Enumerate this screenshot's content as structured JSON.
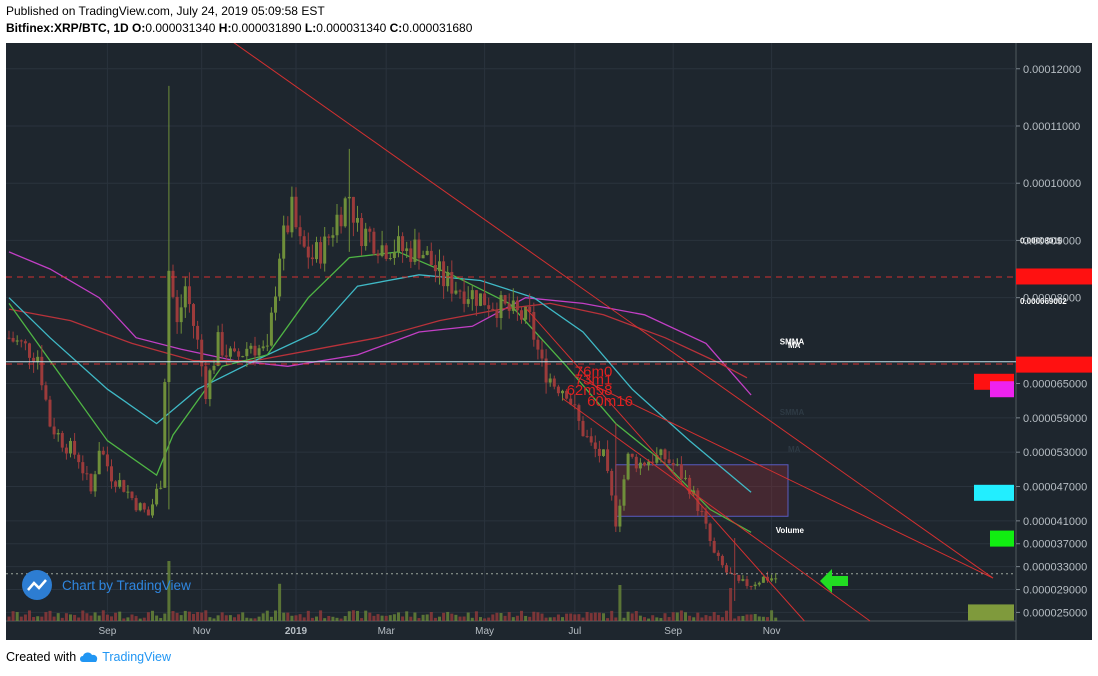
{
  "header": {
    "published": "Published on TradingView.com, July 24, 2019 05:09:58 EST",
    "symbol": "Bitfinex:XRP/BTC, 1D",
    "open_label": "O:",
    "open": "0.000031340",
    "high_label": "H:",
    "high": "0.000031890",
    "low_label": "L:",
    "low": "0.000031340",
    "close_label": "C:",
    "close": "0.000031680"
  },
  "watermark": "Chart by TradingView",
  "footer": {
    "created_with": "Created with",
    "brand": "TradingView"
  },
  "colors": {
    "background": "#1e262e",
    "grid": "#2a333d",
    "up": "#6f8f3a",
    "down": "#9c3b3b",
    "ma_magenta": "#c23fc5",
    "ma_cyan": "#3fb9c6",
    "ma_green": "#4fb544",
    "ma_red": "#b8323a",
    "trend_red": "#d23030",
    "arrow": "#22dd22"
  },
  "chart_data": {
    "type": "candlestick",
    "ylim": [
      2.35e-05,
      0.0001245
    ],
    "y_ticks": [
      "0.00012000",
      "0.00011000",
      "0.00010000",
      "0.00009000",
      "0.00008000",
      "0.000065000",
      "0.000059000",
      "0.000053000",
      "0.000047000",
      "0.000041000",
      "0.000037000",
      "0.000033000",
      "0.000029000",
      "0.000025000"
    ],
    "y_tick_values": [
      0.00012,
      0.00011,
      0.0001,
      9e-05,
      8e-05,
      6.5e-05,
      5.9e-05,
      5.3e-05,
      4.7e-05,
      4.1e-05,
      3.7e-05,
      3.3e-05,
      2.9e-05,
      2.5e-05
    ],
    "x_ticks": [
      "Sep",
      "Nov",
      "2019",
      "Mar",
      "May",
      "Jul",
      "Sep",
      "Nov"
    ],
    "x_tick_index": [
      24,
      47,
      70,
      92,
      116,
      138,
      162,
      186
    ],
    "price_path": [
      [
        0,
        7.3e-05
      ],
      [
        7,
        7e-05
      ],
      [
        10,
        5.8e-05
      ],
      [
        13,
        5.5e-05
      ],
      [
        17,
        5.2e-05
      ],
      [
        20,
        4.6e-05
      ],
      [
        22,
        5.4e-05
      ],
      [
        25,
        4.9e-05
      ],
      [
        28,
        4.7e-05
      ],
      [
        31,
        4.4e-05
      ],
      [
        34,
        4.2e-05
      ],
      [
        37,
        4.8e-05
      ],
      [
        39,
        8.5e-05
      ],
      [
        41,
        7.5e-05
      ],
      [
        43,
        8.2e-05
      ],
      [
        46,
        7.2e-05
      ],
      [
        48,
        6.4e-05
      ],
      [
        51,
        7.2e-05
      ],
      [
        55,
        6.9e-05
      ],
      [
        59,
        7.2e-05
      ],
      [
        63,
        7e-05
      ],
      [
        66,
        8.8e-05
      ],
      [
        69,
        9.5e-05
      ],
      [
        71,
        8.9e-05
      ],
      [
        74,
        8.7e-05
      ],
      [
        77,
        8.9e-05
      ],
      [
        80,
        9.4e-05
      ],
      [
        83,
        9.8e-05
      ],
      [
        85,
        9.2e-05
      ],
      [
        88,
        9.1e-05
      ],
      [
        91,
        8.9e-05
      ],
      [
        94,
        8.9e-05
      ],
      [
        97,
        8.8e-05
      ],
      [
        100,
        8.9e-05
      ],
      [
        103,
        8.6e-05
      ],
      [
        106,
        8.3e-05
      ],
      [
        109,
        8.2e-05
      ],
      [
        112,
        8.1e-05
      ],
      [
        115,
        8e-05
      ],
      [
        118,
        7.9e-05
      ],
      [
        121,
        7.8e-05
      ],
      [
        124,
        7.7e-05
      ],
      [
        127,
        7.6e-05
      ],
      [
        130,
        6.8e-05
      ],
      [
        133,
        6.5e-05
      ],
      [
        136,
        6.4e-05
      ],
      [
        139,
        5.8e-05
      ],
      [
        142,
        5.4e-05
      ],
      [
        145,
        5.2e-05
      ],
      [
        148,
        4.1e-05
      ],
      [
        151,
        5.2e-05
      ],
      [
        154,
        5.1e-05
      ],
      [
        157,
        5.2e-05
      ],
      [
        160,
        5.2e-05
      ],
      [
        163,
        5e-05
      ],
      [
        166,
        4.7e-05
      ],
      [
        169,
        4.2e-05
      ],
      [
        172,
        3.5e-05
      ],
      [
        175,
        3.2e-05
      ],
      [
        178,
        3e-05
      ],
      [
        181,
        3e-05
      ],
      [
        184,
        3.1e-05
      ],
      [
        187,
        3.1e-05
      ]
    ],
    "spikes": [
      {
        "i": 39,
        "high": 0.000117,
        "low": 4.3e-05
      },
      {
        "i": 83,
        "high": 0.000106,
        "low": 8.8e-05
      },
      {
        "i": 148,
        "high": 5.8e-05,
        "low": 4.1e-05
      },
      {
        "i": 177,
        "high": 3.8e-05,
        "low": 2.7e-05
      }
    ],
    "volume_spikes": [
      {
        "i": 39,
        "v": 1.0
      },
      {
        "i": 66,
        "v": 0.62
      },
      {
        "i": 149,
        "v": 0.6
      },
      {
        "i": 176,
        "v": 0.55
      }
    ],
    "moving_averages": [
      {
        "color": "ma_magenta",
        "points": [
          [
            0,
            8.8e-05
          ],
          [
            10,
            8.5e-05
          ],
          [
            22,
            8e-05
          ],
          [
            31,
            7.3e-05
          ],
          [
            42,
            7.1e-05
          ],
          [
            55,
            6.9e-05
          ],
          [
            68,
            6.8e-05
          ],
          [
            85,
            7e-05
          ],
          [
            100,
            7.4e-05
          ],
          [
            113,
            7.5e-05
          ],
          [
            126,
            8e-05
          ],
          [
            140,
            7.9e-05
          ],
          [
            155,
            7.7e-05
          ],
          [
            170,
            7.2e-05
          ],
          [
            181,
            6.3e-05
          ]
        ]
      },
      {
        "color": "ma_red",
        "points": [
          [
            0,
            7.8e-05
          ],
          [
            15,
            7.6e-05
          ],
          [
            30,
            7.2e-05
          ],
          [
            45,
            6.9e-05
          ],
          [
            60,
            6.9e-05
          ],
          [
            75,
            7.1e-05
          ],
          [
            90,
            7.3e-05
          ],
          [
            105,
            7.6e-05
          ],
          [
            120,
            7.8e-05
          ],
          [
            132,
            7.9e-05
          ],
          [
            145,
            7.7e-05
          ],
          [
            160,
            7.3e-05
          ],
          [
            172,
            6.9e-05
          ],
          [
            180,
            6.6e-05
          ]
        ]
      },
      {
        "color": "ma_cyan",
        "points": [
          [
            0,
            8e-05
          ],
          [
            10,
            7.3e-05
          ],
          [
            24,
            6.4e-05
          ],
          [
            36,
            5.8e-05
          ],
          [
            46,
            6.4e-05
          ],
          [
            60,
            6.9e-05
          ],
          [
            75,
            7.4e-05
          ],
          [
            85,
            8.2e-05
          ],
          [
            100,
            8.4e-05
          ],
          [
            115,
            8.3e-05
          ],
          [
            128,
            8e-05
          ],
          [
            140,
            7.4e-05
          ],
          [
            152,
            6.4e-05
          ],
          [
            166,
            5.5e-05
          ],
          [
            181,
            4.6e-05
          ]
        ]
      },
      {
        "color": "ma_green",
        "points": [
          [
            0,
            7.9e-05
          ],
          [
            10,
            6.9e-05
          ],
          [
            24,
            5.5e-05
          ],
          [
            36,
            4.9e-05
          ],
          [
            40,
            5.6e-05
          ],
          [
            52,
            6.8e-05
          ],
          [
            63,
            7e-05
          ],
          [
            73,
            8e-05
          ],
          [
            83,
            8.7e-05
          ],
          [
            95,
            8.8e-05
          ],
          [
            108,
            8.4e-05
          ],
          [
            122,
            7.9e-05
          ],
          [
            136,
            6.8e-05
          ],
          [
            148,
            5.8e-05
          ],
          [
            160,
            5.1e-05
          ],
          [
            171,
            4.3e-05
          ],
          [
            181,
            3.9e-05
          ]
        ]
      }
    ],
    "horizontal_lines": [
      {
        "price": 8.36e-05,
        "style": "dashed",
        "color": "#d23030"
      },
      {
        "price": 6.84e-05,
        "style": "dashed",
        "color": "#d23030"
      },
      {
        "price": 6.88e-05,
        "style": "solid",
        "color": "#bfe3ee"
      },
      {
        "price": 3.176e-05,
        "style": "dotted",
        "color": "#9aa39a"
      }
    ],
    "trendlines": [
      {
        "from": [
          50,
          0.000127
        ],
        "to": [
          240,
          3.1e-05
        ]
      },
      {
        "from": [
          138,
          6.63e-05
        ],
        "to": [
          240,
          3.1e-05
        ]
      },
      {
        "from": [
          135,
          6.24e-05
        ],
        "to": [
          210,
          2.35e-05
        ]
      },
      {
        "from": [
          126,
          7.82e-05
        ],
        "to": [
          194,
          2.35e-05
        ]
      }
    ],
    "zone": {
      "i0": 148,
      "i1": 190,
      "top": 5.08e-05,
      "bottom": 4.18e-05
    },
    "annotations": [
      {
        "text": "76m0",
        "i": 138,
        "price": 6.62e-05,
        "color": "#e02020"
      },
      {
        "text": "73m1",
        "i": 138,
        "price": 6.48e-05,
        "color": "#e02020"
      },
      {
        "text": "62m58",
        "i": 136,
        "price": 6.3e-05,
        "color": "#e02020"
      },
      {
        "text": "60m16",
        "i": 141,
        "price": 6.11e-05,
        "color": "#e02020"
      }
    ],
    "ma_labels": [
      {
        "text": "SMMA",
        "i": 188,
        "price": 7.18e-05,
        "color": "#ffffff"
      },
      {
        "text": "MA",
        "i": 190,
        "price": 7.12e-05,
        "color": "#ffffff"
      },
      {
        "text": "SMMA",
        "i": 188,
        "price": 5.95e-05,
        "color": "#2e3a44"
      },
      {
        "text": "MA",
        "i": 190,
        "price": 5.3e-05,
        "color": "#2e3a44"
      },
      {
        "text": "Volume",
        "i": 187,
        "price": 3.89e-05,
        "color": "#ffffff"
      }
    ],
    "price_labels": [
      {
        "text": "0.00008015",
        "price": 8.95e-05
      },
      {
        "text": "0.000069002",
        "price": 7.89e-05
      }
    ],
    "side_markers": [
      {
        "color": "#ff1111",
        "price": 8.37e-05,
        "wide": true
      },
      {
        "color": "#ff1111",
        "price": 6.83e-05,
        "wide": true
      },
      {
        "color": "#ff1111",
        "price": 6.53e-05,
        "wide": false
      },
      {
        "color": "#ee22ee",
        "price": 6.4e-05,
        "wide": false
      },
      {
        "color": "#22eeff",
        "price": 4.59e-05,
        "wide": false
      },
      {
        "color": "#11ee11",
        "price": 3.79e-05,
        "wide": false
      },
      {
        "color": "#7f9a3c",
        "price": 2.5e-05,
        "wide": false
      }
    ]
  }
}
